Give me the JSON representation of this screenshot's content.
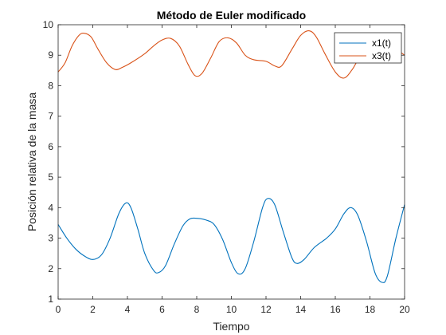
{
  "chart_data": {
    "type": "line",
    "title": "Método de Euler modificado",
    "xlabel": "Tiempo",
    "ylabel": "Posición relativa de la masa",
    "xlim": [
      0,
      20
    ],
    "ylim": [
      1,
      10
    ],
    "xticks": [
      0,
      2,
      4,
      6,
      8,
      10,
      12,
      14,
      16,
      18,
      20
    ],
    "yticks": [
      1,
      2,
      3,
      4,
      5,
      6,
      7,
      8,
      9,
      10
    ],
    "grid": false,
    "legend_position": "top-right",
    "series": [
      {
        "name": "x1(t)",
        "color": "#0072BD",
        "points": [
          [
            0,
            3.45
          ],
          [
            0.5,
            3.0
          ],
          [
            1.0,
            2.65
          ],
          [
            1.5,
            2.42
          ],
          [
            2.0,
            2.3
          ],
          [
            2.5,
            2.45
          ],
          [
            3.0,
            3.0
          ],
          [
            3.5,
            3.8
          ],
          [
            3.9,
            4.15
          ],
          [
            4.2,
            4.0
          ],
          [
            4.6,
            3.3
          ],
          [
            5.0,
            2.5
          ],
          [
            5.5,
            1.95
          ],
          [
            5.8,
            1.87
          ],
          [
            6.2,
            2.1
          ],
          [
            6.7,
            2.8
          ],
          [
            7.2,
            3.4
          ],
          [
            7.6,
            3.63
          ],
          [
            8.0,
            3.65
          ],
          [
            8.5,
            3.6
          ],
          [
            9.0,
            3.45
          ],
          [
            9.5,
            2.95
          ],
          [
            10.0,
            2.2
          ],
          [
            10.4,
            1.83
          ],
          [
            10.8,
            2.0
          ],
          [
            11.3,
            2.9
          ],
          [
            11.8,
            4.0
          ],
          [
            12.1,
            4.3
          ],
          [
            12.5,
            4.1
          ],
          [
            13.0,
            3.2
          ],
          [
            13.5,
            2.35
          ],
          [
            13.8,
            2.17
          ],
          [
            14.2,
            2.3
          ],
          [
            14.8,
            2.7
          ],
          [
            15.5,
            3.0
          ],
          [
            16.0,
            3.3
          ],
          [
            16.5,
            3.8
          ],
          [
            16.9,
            4.0
          ],
          [
            17.3,
            3.75
          ],
          [
            17.8,
            2.9
          ],
          [
            18.3,
            1.85
          ],
          [
            18.7,
            1.55
          ],
          [
            19.0,
            1.75
          ],
          [
            19.5,
            3.0
          ],
          [
            20.0,
            4.1
          ]
        ]
      },
      {
        "name": "x3(t)",
        "color": "#D95319",
        "points": [
          [
            0,
            8.45
          ],
          [
            0.4,
            8.75
          ],
          [
            0.8,
            9.3
          ],
          [
            1.2,
            9.65
          ],
          [
            1.5,
            9.72
          ],
          [
            1.9,
            9.6
          ],
          [
            2.3,
            9.2
          ],
          [
            2.8,
            8.75
          ],
          [
            3.3,
            8.53
          ],
          [
            3.7,
            8.6
          ],
          [
            4.2,
            8.75
          ],
          [
            5.0,
            9.05
          ],
          [
            5.5,
            9.3
          ],
          [
            6.0,
            9.5
          ],
          [
            6.5,
            9.55
          ],
          [
            7.0,
            9.3
          ],
          [
            7.5,
            8.7
          ],
          [
            7.9,
            8.33
          ],
          [
            8.3,
            8.4
          ],
          [
            8.8,
            8.9
          ],
          [
            9.3,
            9.45
          ],
          [
            9.8,
            9.57
          ],
          [
            10.3,
            9.4
          ],
          [
            10.8,
            9.0
          ],
          [
            11.3,
            8.85
          ],
          [
            12.0,
            8.8
          ],
          [
            12.5,
            8.65
          ],
          [
            12.9,
            8.65
          ],
          [
            13.5,
            9.2
          ],
          [
            14.0,
            9.65
          ],
          [
            14.5,
            9.8
          ],
          [
            14.9,
            9.6
          ],
          [
            15.4,
            9.05
          ],
          [
            16.0,
            8.45
          ],
          [
            16.5,
            8.25
          ],
          [
            17.0,
            8.55
          ],
          [
            17.5,
            9.05
          ],
          [
            18.0,
            9.35
          ],
          [
            18.5,
            9.4
          ],
          [
            19.0,
            9.32
          ],
          [
            19.5,
            9.2
          ],
          [
            20.0,
            9.0
          ]
        ]
      }
    ]
  }
}
